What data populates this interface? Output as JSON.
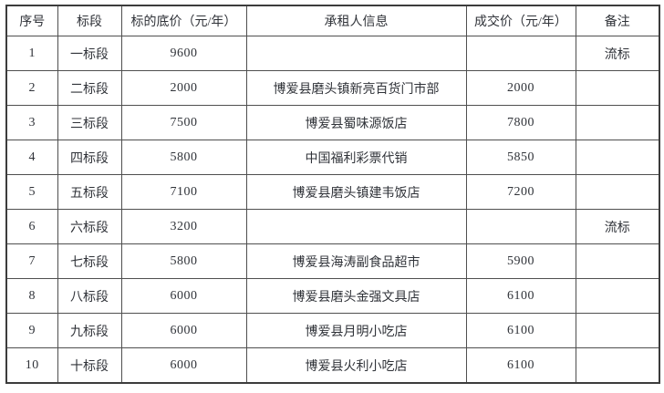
{
  "colors": {
    "background": "#ffffff",
    "border_outer": "#3c3c3c",
    "border_inner": "#4f4f4f",
    "text": "#303339"
  },
  "table": {
    "headers": [
      "序号",
      "标段",
      "标的底价（元/年）",
      "承租人信息",
      "成交价（元/年）",
      "备注"
    ],
    "rows": [
      [
        "1",
        "一标段",
        "9600",
        "",
        "",
        "流标"
      ],
      [
        "2",
        "二标段",
        "2000",
        "博爱县磨头镇新亮百货门市部",
        "2000",
        ""
      ],
      [
        "3",
        "三标段",
        "7500",
        "博爱县蜀味源饭店",
        "7800",
        ""
      ],
      [
        "4",
        "四标段",
        "5800",
        "中国福利彩票代销",
        "5850",
        ""
      ],
      [
        "5",
        "五标段",
        "7100",
        "博爱县磨头镇建韦饭店",
        "7200",
        ""
      ],
      [
        "6",
        "六标段",
        "3200",
        "",
        "",
        "流标"
      ],
      [
        "7",
        "七标段",
        "5800",
        "博爱县海涛副食品超市",
        "5900",
        ""
      ],
      [
        "8",
        "八标段",
        "6000",
        "博爱县磨头金强文具店",
        "6100",
        ""
      ],
      [
        "9",
        "九标段",
        "6000",
        "博爱县月明小吃店",
        "6100",
        ""
      ],
      [
        "10",
        "十标段",
        "6000",
        "博爱县火利小吃店",
        "6100",
        ""
      ]
    ]
  }
}
